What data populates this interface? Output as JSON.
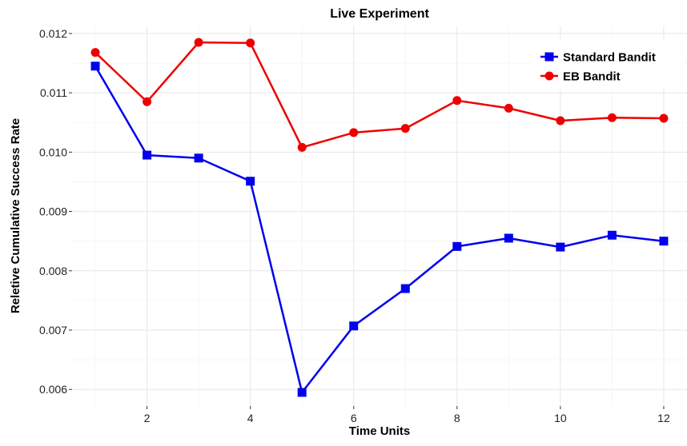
{
  "chart_data": {
    "type": "line",
    "title": "Live Experiment",
    "xlabel": "Time Units",
    "ylabel": "Reletive Cumulative Success Rate",
    "xlim": [
      0.55,
      12.45
    ],
    "ylim": [
      0.00572,
      0.01212
    ],
    "x_ticks": [
      2,
      4,
      6,
      8,
      10,
      12
    ],
    "y_ticks": [
      0.006,
      0.007,
      0.008,
      0.009,
      0.01,
      0.011,
      0.012
    ],
    "y_tick_labels": [
      "0.006",
      "0.007",
      "0.008",
      "0.009",
      "0.010",
      "0.011",
      "0.012"
    ],
    "x_tick_labels": [
      "2",
      "4",
      "6",
      "8",
      "10",
      "12"
    ],
    "grid": true,
    "legend_position": "top-right",
    "x": [
      1,
      2,
      3,
      4,
      5,
      6,
      7,
      8,
      9,
      10,
      11,
      12
    ],
    "series": [
      {
        "name": "Standard Bandit",
        "color": "#0000ee",
        "marker": "square",
        "values": [
          0.01145,
          0.00995,
          0.0099,
          0.00951,
          0.00595,
          0.00707,
          0.0077,
          0.00841,
          0.00855,
          0.0084,
          0.0086,
          0.0085
        ]
      },
      {
        "name": "EB Bandit",
        "color": "#ee0000",
        "marker": "circle",
        "values": [
          0.01168,
          0.01085,
          0.01185,
          0.01184,
          0.01008,
          0.01033,
          0.0104,
          0.01087,
          0.01074,
          0.01053,
          0.01058,
          0.01057
        ]
      }
    ]
  }
}
